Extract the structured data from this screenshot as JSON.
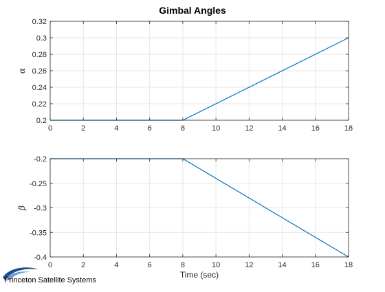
{
  "figure": {
    "title": "Gimbal Angles",
    "logo_text": "Princeton Satellite Systems"
  },
  "colors": {
    "line": "#0072BD",
    "axes": "#262626",
    "grid": "#e6e6e6",
    "background": "#ffffff",
    "logo_swoosh": "#1f4e8c"
  },
  "chart_data": [
    {
      "type": "line",
      "title": "Gimbal Angles",
      "xlabel": "",
      "ylabel": "α",
      "xlim": [
        0,
        18
      ],
      "ylim": [
        0.2,
        0.32
      ],
      "xticks": [
        0,
        2,
        4,
        6,
        8,
        10,
        12,
        14,
        16,
        18
      ],
      "xtick_labels": [
        "0",
        "2",
        "4",
        "6",
        "8",
        "10",
        "12",
        "14",
        "16",
        "18"
      ],
      "yticks": [
        0.2,
        0.22,
        0.24,
        0.26,
        0.28,
        0.3,
        0.32
      ],
      "ytick_labels": [
        "0.2",
        "0.22",
        "0.24",
        "0.26",
        "0.28",
        "0.3",
        "0.32"
      ],
      "grid": true,
      "series": [
        {
          "x": [
            0,
            8,
            18
          ],
          "y": [
            0.2,
            0.2,
            0.3
          ]
        }
      ]
    },
    {
      "type": "line",
      "title": "",
      "xlabel": "Time (sec)",
      "ylabel": "β",
      "xlim": [
        0,
        18
      ],
      "ylim": [
        -0.4,
        -0.2
      ],
      "xticks": [
        0,
        2,
        4,
        6,
        8,
        10,
        12,
        14,
        16,
        18
      ],
      "xtick_labels": [
        "0",
        "2",
        "4",
        "6",
        "8",
        "10",
        "12",
        "14",
        "16",
        "18"
      ],
      "yticks": [
        -0.4,
        -0.35,
        -0.3,
        -0.25,
        -0.2
      ],
      "ytick_labels": [
        "-0.4",
        "-0.35",
        "-0.3",
        "-0.25",
        "-0.2"
      ],
      "grid": true,
      "series": [
        {
          "x": [
            0,
            8,
            18
          ],
          "y": [
            -0.2,
            -0.2,
            -0.4
          ]
        }
      ]
    }
  ]
}
